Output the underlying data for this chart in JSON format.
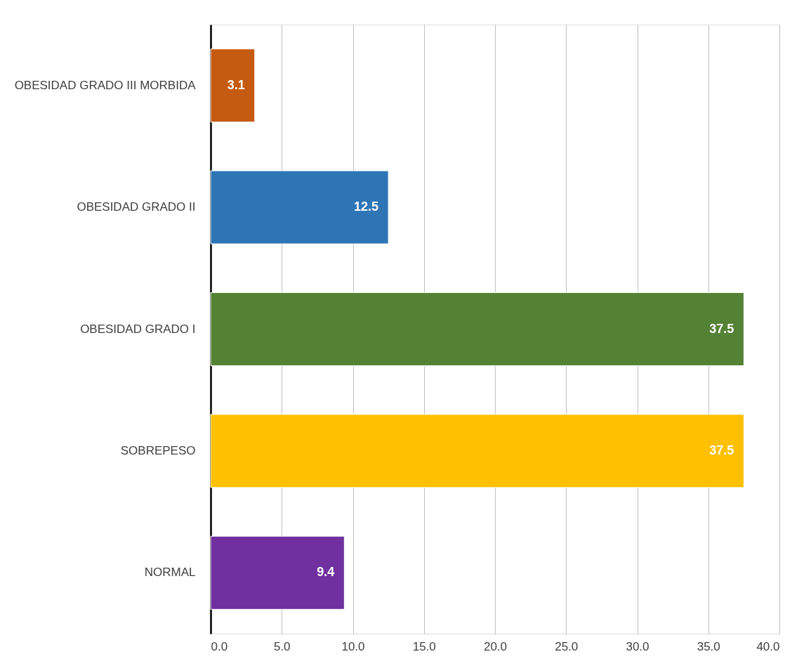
{
  "chart_data": {
    "type": "bar",
    "orientation": "horizontal",
    "categories": [
      "OBESIDAD GRADO III MORBIDA",
      "OBESIDAD GRADO II",
      "OBESIDAD GRADO I",
      "SOBREPESO",
      "NORMAL"
    ],
    "values": [
      3.1,
      12.5,
      37.5,
      37.5,
      9.4
    ],
    "colors": [
      "#c55a11",
      "#2e75b6",
      "#548235",
      "#ffc000",
      "#7030a0"
    ],
    "xlim": [
      0,
      40
    ],
    "xticks": [
      {
        "value": 0,
        "label": "0.0"
      },
      {
        "value": 5,
        "label": "5.0"
      },
      {
        "value": 10,
        "label": "10.0"
      },
      {
        "value": 15,
        "label": "15.0"
      },
      {
        "value": 20,
        "label": "20.0"
      },
      {
        "value": 25,
        "label": "25.0"
      },
      {
        "value": 30,
        "label": "30.0"
      },
      {
        "value": 35,
        "label": "35.0"
      },
      {
        "value": 40,
        "label": "40.0"
      }
    ],
    "grid": "x",
    "data_labels": true
  }
}
